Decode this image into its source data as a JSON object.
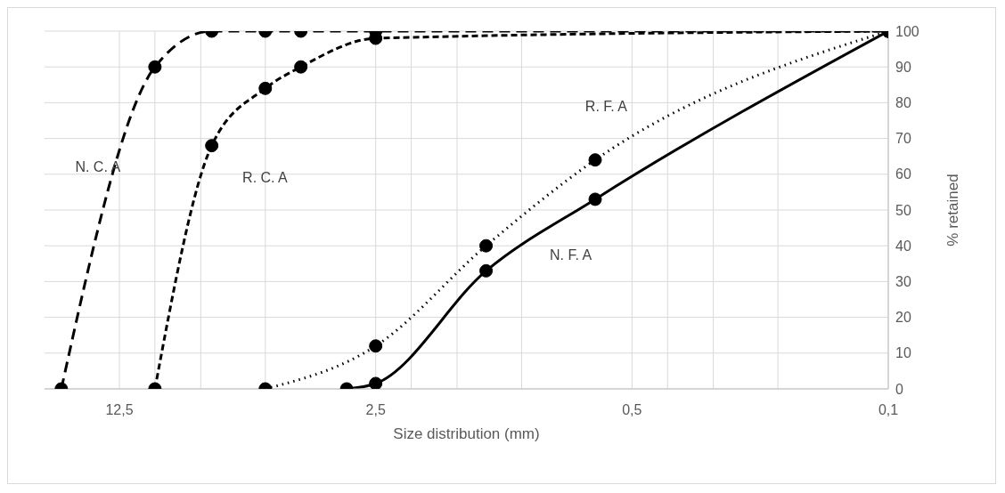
{
  "chart_data": {
    "type": "line",
    "xlabel": "Size distribution (mm)",
    "ylabel": "% retained",
    "log": "x",
    "xlim": [
      20,
      0.1
    ],
    "xticks": [
      {
        "value": 12.5,
        "label": "12,5"
      },
      {
        "value": 10,
        "label": null
      },
      {
        "value": 7.5,
        "label": null
      },
      {
        "value": 5,
        "label": null
      },
      {
        "value": 2.5,
        "label": "2,5"
      },
      {
        "value": 2,
        "label": null
      },
      {
        "value": 1.5,
        "label": null
      },
      {
        "value": 1,
        "label": null
      },
      {
        "value": 0.5,
        "label": "0,5"
      },
      {
        "value": 0.4,
        "label": null
      },
      {
        "value": 0.3,
        "label": null
      },
      {
        "value": 0.2,
        "label": null
      },
      {
        "value": 0.1,
        "label": "0,1"
      }
    ],
    "ylim": [
      0,
      100
    ],
    "yticks": [
      0,
      10,
      20,
      30,
      40,
      50,
      60,
      70,
      80,
      90,
      100
    ],
    "grid": true,
    "legend": false,
    "marker": "circle",
    "series": [
      {
        "name": "N. C. A",
        "color": "#000000",
        "line_style": "long-dashed",
        "x": [
          18,
          10,
          7,
          5,
          4,
          2.5,
          0.1
        ],
        "values": [
          0,
          90,
          100,
          100,
          100,
          100,
          100
        ]
      },
      {
        "name": "R. C. A",
        "color": "#000000",
        "line_style": "dashed",
        "x": [
          10,
          7,
          5,
          4,
          2.5,
          0.1
        ],
        "values": [
          0,
          68,
          84,
          90,
          98,
          100
        ]
      },
      {
        "name": "R. F. A",
        "color": "#000000",
        "line_style": "dotted",
        "x": [
          5,
          2.5,
          1.25,
          0.63,
          0.1
        ],
        "values": [
          0,
          12,
          40,
          64,
          100
        ]
      },
      {
        "name": "N. F. A",
        "color": "#000000",
        "line_style": "solid",
        "x": [
          3,
          2.5,
          1.25,
          0.63,
          0.1
        ],
        "values": [
          0,
          1.5,
          33,
          53,
          100
        ]
      }
    ]
  }
}
